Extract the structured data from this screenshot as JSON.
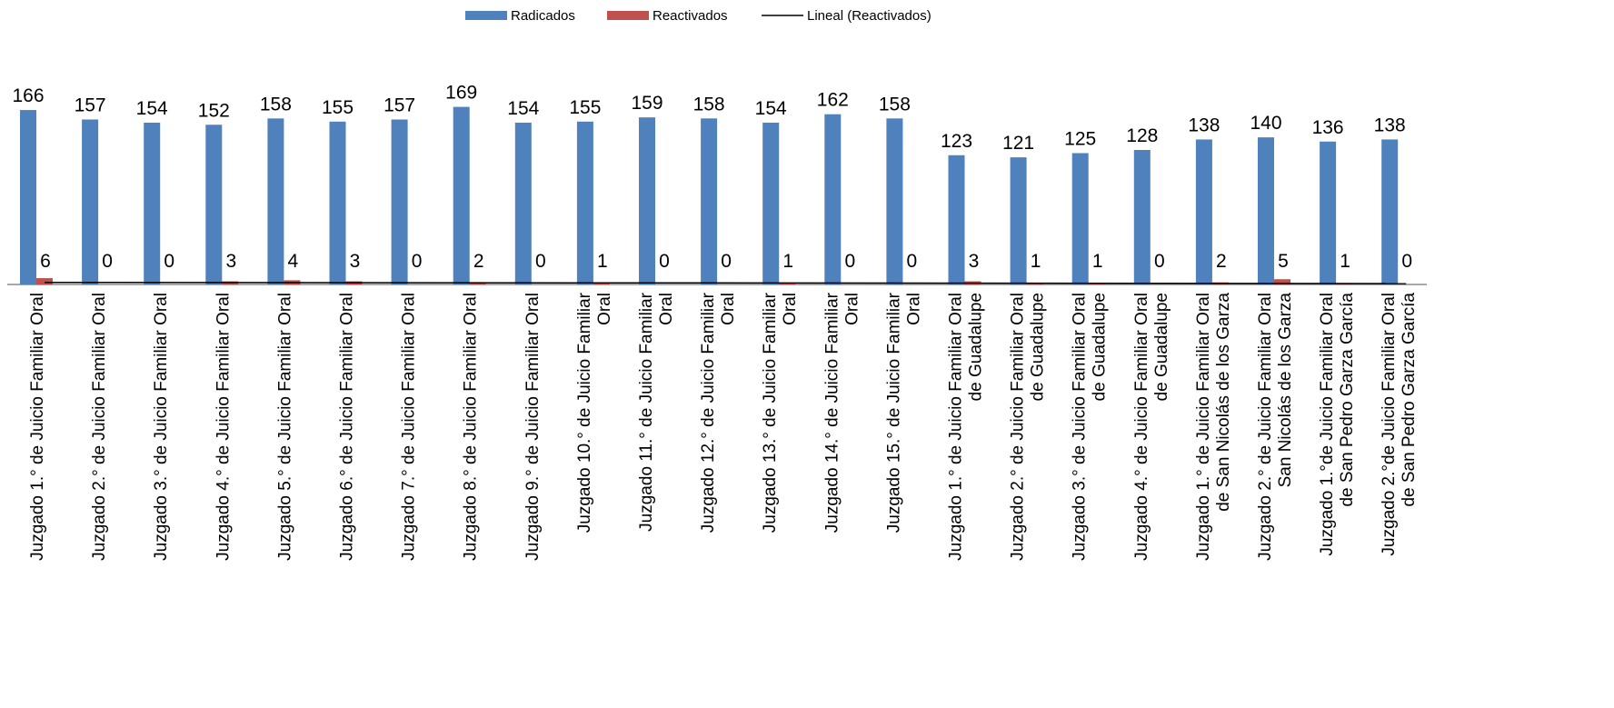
{
  "chart_data": {
    "type": "bar",
    "legend_position": "top-center",
    "grid": false,
    "ylim": [
      0,
      180
    ],
    "colors": {
      "Radicados": "#4f81bd",
      "Reactivados": "#c0504d",
      "trend": "#000000"
    },
    "legend": {
      "bar1": "Radicados",
      "bar2": "Reactivados",
      "line": "Lineal (Reactivados)"
    },
    "categories": [
      [
        "Juzgado 1.° de Juicio Familiar Oral"
      ],
      [
        "Juzgado 2.° de Juicio Familiar Oral"
      ],
      [
        "Juzgado 3.° de Juicio Familiar Oral"
      ],
      [
        "Juzgado 4.° de Juicio Familiar Oral"
      ],
      [
        "Juzgado 5.° de Juicio Familiar Oral"
      ],
      [
        "Juzgado 6.° de Juicio Familiar Oral"
      ],
      [
        "Juzgado 7.° de Juicio Familiar Oral"
      ],
      [
        "Juzgado 8.° de Juicio Familiar Oral"
      ],
      [
        "Juzgado 9.° de Juicio Familiar Oral"
      ],
      [
        "Juzgado 10.° de Juicio Familiar",
        "Oral"
      ],
      [
        "Juzgado 11.° de Juicio Familiar",
        "Oral"
      ],
      [
        "Juzgado 12.° de Juicio Familiar",
        "Oral"
      ],
      [
        "Juzgado 13.° de Juicio Familiar",
        "Oral"
      ],
      [
        "Juzgado 14.° de Juicio Familiar",
        "Oral"
      ],
      [
        "Juzgado 15.° de Juicio Familiar",
        "Oral"
      ],
      [
        "Juzgado 1.° de Juicio Familiar Oral",
        "de Guadalupe"
      ],
      [
        "Juzgado 2.° de Juicio Familiar Oral",
        "de Guadalupe"
      ],
      [
        "Juzgado 3.° de Juicio Familiar Oral",
        "de Guadalupe"
      ],
      [
        "Juzgado 4.° de Juicio Familiar Oral",
        "de Guadalupe"
      ],
      [
        "Juzgado 1.° de Juicio Familiar Oral",
        "de San Nicolás de los Garza"
      ],
      [
        "Juzgado 2.° de Juicio Familiar Oral",
        "San Nicolás de los Garza"
      ],
      [
        "Juzgado 1.°de Juicio Familiar Oral",
        "de San Pedro Garza García"
      ],
      [
        "Juzgado 2.°de Juicio Familiar Oral",
        "de San Pedro Garza García"
      ]
    ],
    "series": [
      {
        "name": "Radicados",
        "values": [
          166,
          157,
          154,
          152,
          158,
          155,
          157,
          169,
          154,
          155,
          159,
          158,
          154,
          162,
          158,
          123,
          121,
          125,
          128,
          138,
          140,
          136,
          138
        ]
      },
      {
        "name": "Reactivados",
        "values": [
          6,
          0,
          0,
          3,
          4,
          3,
          0,
          2,
          0,
          1,
          0,
          0,
          1,
          0,
          0,
          3,
          1,
          1,
          0,
          2,
          5,
          1,
          0
        ]
      }
    ],
    "trendline": {
      "name": "Lineal (Reactivados)",
      "type": "linear",
      "series": "Reactivados"
    }
  }
}
